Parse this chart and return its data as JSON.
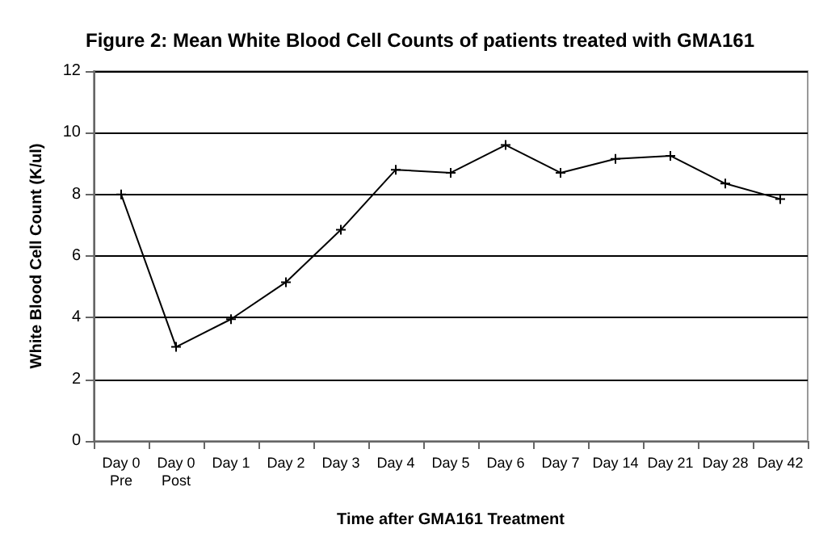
{
  "chart_data": {
    "type": "line",
    "title": "Figure 2: Mean White Blood Cell Counts of patients treated with GMA161",
    "xlabel": "Time after GMA161 Treatment",
    "ylabel": "White Blood Cell Count (K/ul)",
    "categories": [
      "Day 0\nPre",
      "Day 0\nPost",
      "Day 1",
      "Day 2",
      "Day 3",
      "Day 4",
      "Day 5",
      "Day 6",
      "Day 7",
      "Day 14",
      "Day 21",
      "Day 28",
      "Day 42"
    ],
    "values": [
      8.0,
      3.05,
      3.95,
      5.15,
      6.85,
      8.8,
      8.7,
      9.6,
      8.7,
      9.15,
      9.25,
      8.35,
      7.85
    ],
    "color": "#000000",
    "ylim": [
      0,
      12
    ],
    "yticks": [
      0,
      2,
      4,
      6,
      8,
      10,
      12
    ],
    "grid": "y",
    "marker": "cross",
    "line_style": "solid"
  }
}
